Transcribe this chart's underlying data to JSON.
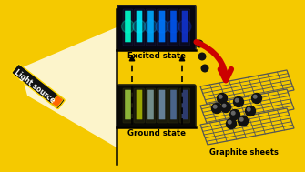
{
  "bg_color": "#F5C900",
  "excited_state_label": "Excited state",
  "ground_state_label": "Ground state",
  "light_source_label": "Light source",
  "graphite_label": "Graphite sheets",
  "vial_colors_excited": [
    "#00FFCC",
    "#00EEFF",
    "#00AAFF",
    "#0077FF",
    "#0055EE",
    "#1133CC"
  ],
  "vial_colors_ground": [
    "#AADD44",
    "#BBCC00",
    "#88AAAA",
    "#7799BB",
    "#5577AA",
    "#334488"
  ],
  "arrow_color_main": "#CC0000",
  "gs_color": "#555555",
  "dev_color": "#111111",
  "dev_edge": "#FFD700"
}
